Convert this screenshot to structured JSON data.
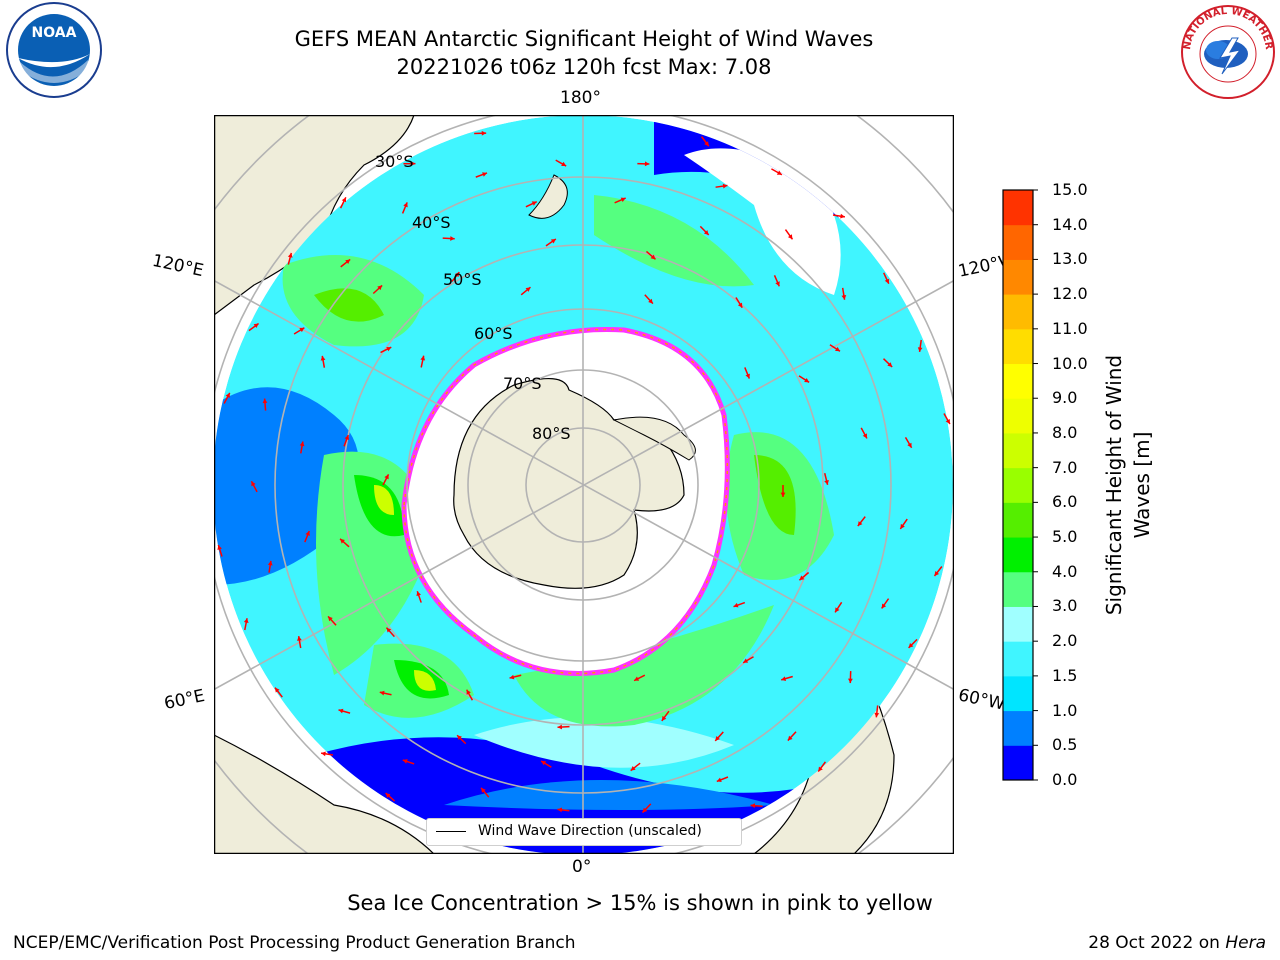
{
  "header": {
    "title_line1": "GEFS MEAN Antarctic Significant Height of Wind Waves",
    "title_line2": "20221026 t06z 120h fcst   Max: 7.08"
  },
  "logos": {
    "left": "NOAA",
    "right": "NATIONAL WEATHER SERVICE"
  },
  "map": {
    "projection": "south-polar-stereographic",
    "longitude_labels": {
      "top": "180°",
      "bottom": "0°",
      "upper_left": "120°E",
      "upper_right": "120°W",
      "lower_left": "60°E",
      "lower_right": "60°W"
    },
    "latitude_labels": [
      "30°S",
      "40°S",
      "50°S",
      "60°S",
      "70°S",
      "80°S"
    ],
    "land_color": "#efedda",
    "sea_ice_color": "#ffffff",
    "sea_ice_edge_colors": [
      "#ff33ff",
      "#ff9900",
      "#ffd24a"
    ],
    "grid_color": "#b3b3b3",
    "arrow_color": "#ff0000",
    "legend": {
      "label": "Wind Wave Direction (unscaled)"
    }
  },
  "colorbar": {
    "label": "Significant Height of Wind Waves [m]",
    "label_line1": "Significant Height of Wind",
    "label_line2": "Waves [m]",
    "ticks": [
      "0.0",
      "0.5",
      "1.0",
      "1.5",
      "2.0",
      "3.0",
      "4.0",
      "5.0",
      "6.0",
      "7.0",
      "8.0",
      "9.0",
      "10.0",
      "11.0",
      "12.0",
      "13.0",
      "14.0",
      "15.0"
    ],
    "colors": [
      "#0000ff",
      "#0080ff",
      "#00e5ff",
      "#40f5ff",
      "#a0ffff",
      "#55ff80",
      "#00f000",
      "#55ee00",
      "#99ff00",
      "#ccff00",
      "#eeff00",
      "#ffff00",
      "#ffdd00",
      "#ffbb00",
      "#ff8800",
      "#ff6600",
      "#ff3300"
    ]
  },
  "footer": {
    "caption": "Sea Ice Concentration > 15% is shown in pink to yellow",
    "credit_left": "NCEP/EMC/Verification Post Processing Product Generation Branch",
    "credit_date": "28 Oct 2022 on ",
    "credit_host": "Hera"
  }
}
